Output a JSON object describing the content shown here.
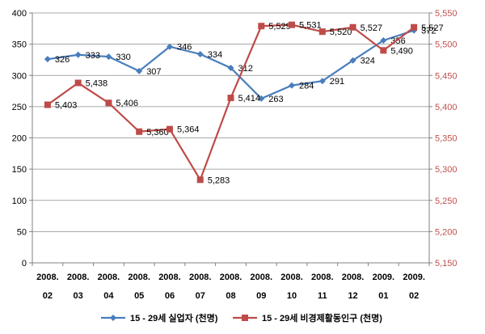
{
  "chart_data": {
    "type": "line",
    "categories": [
      [
        "2008.",
        "02"
      ],
      [
        "2008.",
        "03"
      ],
      [
        "2008.",
        "04"
      ],
      [
        "2008.",
        "05"
      ],
      [
        "2008.",
        "06"
      ],
      [
        "2008.",
        "07"
      ],
      [
        "2008.",
        "08"
      ],
      [
        "2008.",
        "09"
      ],
      [
        "2008.",
        "10"
      ],
      [
        "2008.",
        "11"
      ],
      [
        "2008.",
        "12"
      ],
      [
        "2009.",
        "01"
      ],
      [
        "2009.",
        "02"
      ]
    ],
    "series": [
      {
        "name": "15 - 29세 실업자 (천명)",
        "axis": "left",
        "color": "#4a7ebb",
        "marker": "diamond",
        "values": [
          326,
          333,
          330,
          307,
          346,
          334,
          312,
          263,
          284,
          291,
          324,
          356,
          372
        ],
        "labels": [
          "326",
          "333",
          "330",
          "307",
          "346",
          "334",
          "312",
          "263",
          "284",
          "291",
          "324",
          "356",
          "372"
        ]
      },
      {
        "name": "15 - 29세 비경제활동인구 (천명)",
        "axis": "right",
        "color": "#be4b48",
        "marker": "square",
        "values": [
          5403,
          5438,
          5406,
          5360,
          5364,
          5283,
          5414,
          5529,
          5531,
          5520,
          5527,
          5490,
          5527
        ],
        "labels": [
          "5,403",
          "5,438",
          "5,406",
          "5,360",
          "5,364",
          "5,283",
          "5,414",
          "5,529",
          "5,531",
          "5,520",
          "5,527",
          "5,490",
          "5,527"
        ]
      }
    ],
    "y_left": {
      "min": 0,
      "max": 400,
      "step": 50,
      "tick_color": "#000000"
    },
    "y_right": {
      "min": 5150,
      "max": 5550,
      "step": 50,
      "tick_color": "#c0504d"
    },
    "grid": true,
    "legend": "bottom",
    "title": "",
    "xlabel": "",
    "ylabel": ""
  }
}
